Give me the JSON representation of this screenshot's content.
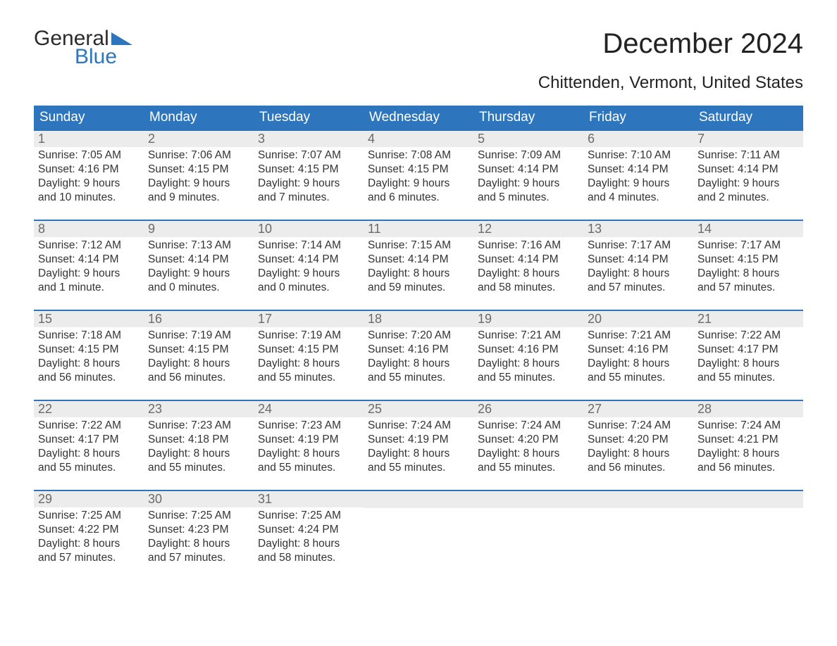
{
  "brand": {
    "word1": "General",
    "word2": "Blue",
    "tri_color": "#2d76bd"
  },
  "title": "December 2024",
  "location": "Chittenden, Vermont, United States",
  "colors": {
    "header_bg": "#2d76bd",
    "header_fg": "#ffffff",
    "daynum_bg": "#ececec",
    "daynum_fg": "#6a6a6a",
    "text": "#333333",
    "week_border": "#2d76bd",
    "background": "#ffffff"
  },
  "dow": [
    "Sunday",
    "Monday",
    "Tuesday",
    "Wednesday",
    "Thursday",
    "Friday",
    "Saturday"
  ],
  "labels": {
    "sunrise": "Sunrise:",
    "sunset": "Sunset:",
    "daylight": "Daylight:"
  },
  "weeks": [
    [
      {
        "n": "1",
        "sr": "7:05 AM",
        "ss": "4:16 PM",
        "dl": "9 hours and 10 minutes."
      },
      {
        "n": "2",
        "sr": "7:06 AM",
        "ss": "4:15 PM",
        "dl": "9 hours and 9 minutes."
      },
      {
        "n": "3",
        "sr": "7:07 AM",
        "ss": "4:15 PM",
        "dl": "9 hours and 7 minutes."
      },
      {
        "n": "4",
        "sr": "7:08 AM",
        "ss": "4:15 PM",
        "dl": "9 hours and 6 minutes."
      },
      {
        "n": "5",
        "sr": "7:09 AM",
        "ss": "4:14 PM",
        "dl": "9 hours and 5 minutes."
      },
      {
        "n": "6",
        "sr": "7:10 AM",
        "ss": "4:14 PM",
        "dl": "9 hours and 4 minutes."
      },
      {
        "n": "7",
        "sr": "7:11 AM",
        "ss": "4:14 PM",
        "dl": "9 hours and 2 minutes."
      }
    ],
    [
      {
        "n": "8",
        "sr": "7:12 AM",
        "ss": "4:14 PM",
        "dl": "9 hours and 1 minute."
      },
      {
        "n": "9",
        "sr": "7:13 AM",
        "ss": "4:14 PM",
        "dl": "9 hours and 0 minutes."
      },
      {
        "n": "10",
        "sr": "7:14 AM",
        "ss": "4:14 PM",
        "dl": "9 hours and 0 minutes."
      },
      {
        "n": "11",
        "sr": "7:15 AM",
        "ss": "4:14 PM",
        "dl": "8 hours and 59 minutes."
      },
      {
        "n": "12",
        "sr": "7:16 AM",
        "ss": "4:14 PM",
        "dl": "8 hours and 58 minutes."
      },
      {
        "n": "13",
        "sr": "7:17 AM",
        "ss": "4:14 PM",
        "dl": "8 hours and 57 minutes."
      },
      {
        "n": "14",
        "sr": "7:17 AM",
        "ss": "4:15 PM",
        "dl": "8 hours and 57 minutes."
      }
    ],
    [
      {
        "n": "15",
        "sr": "7:18 AM",
        "ss": "4:15 PM",
        "dl": "8 hours and 56 minutes."
      },
      {
        "n": "16",
        "sr": "7:19 AM",
        "ss": "4:15 PM",
        "dl": "8 hours and 56 minutes."
      },
      {
        "n": "17",
        "sr": "7:19 AM",
        "ss": "4:15 PM",
        "dl": "8 hours and 55 minutes."
      },
      {
        "n": "18",
        "sr": "7:20 AM",
        "ss": "4:16 PM",
        "dl": "8 hours and 55 minutes."
      },
      {
        "n": "19",
        "sr": "7:21 AM",
        "ss": "4:16 PM",
        "dl": "8 hours and 55 minutes."
      },
      {
        "n": "20",
        "sr": "7:21 AM",
        "ss": "4:16 PM",
        "dl": "8 hours and 55 minutes."
      },
      {
        "n": "21",
        "sr": "7:22 AM",
        "ss": "4:17 PM",
        "dl": "8 hours and 55 minutes."
      }
    ],
    [
      {
        "n": "22",
        "sr": "7:22 AM",
        "ss": "4:17 PM",
        "dl": "8 hours and 55 minutes."
      },
      {
        "n": "23",
        "sr": "7:23 AM",
        "ss": "4:18 PM",
        "dl": "8 hours and 55 minutes."
      },
      {
        "n": "24",
        "sr": "7:23 AM",
        "ss": "4:19 PM",
        "dl": "8 hours and 55 minutes."
      },
      {
        "n": "25",
        "sr": "7:24 AM",
        "ss": "4:19 PM",
        "dl": "8 hours and 55 minutes."
      },
      {
        "n": "26",
        "sr": "7:24 AM",
        "ss": "4:20 PM",
        "dl": "8 hours and 55 minutes."
      },
      {
        "n": "27",
        "sr": "7:24 AM",
        "ss": "4:20 PM",
        "dl": "8 hours and 56 minutes."
      },
      {
        "n": "28",
        "sr": "7:24 AM",
        "ss": "4:21 PM",
        "dl": "8 hours and 56 minutes."
      }
    ],
    [
      {
        "n": "29",
        "sr": "7:25 AM",
        "ss": "4:22 PM",
        "dl": "8 hours and 57 minutes."
      },
      {
        "n": "30",
        "sr": "7:25 AM",
        "ss": "4:23 PM",
        "dl": "8 hours and 57 minutes."
      },
      {
        "n": "31",
        "sr": "7:25 AM",
        "ss": "4:24 PM",
        "dl": "8 hours and 58 minutes."
      },
      null,
      null,
      null,
      null
    ]
  ]
}
